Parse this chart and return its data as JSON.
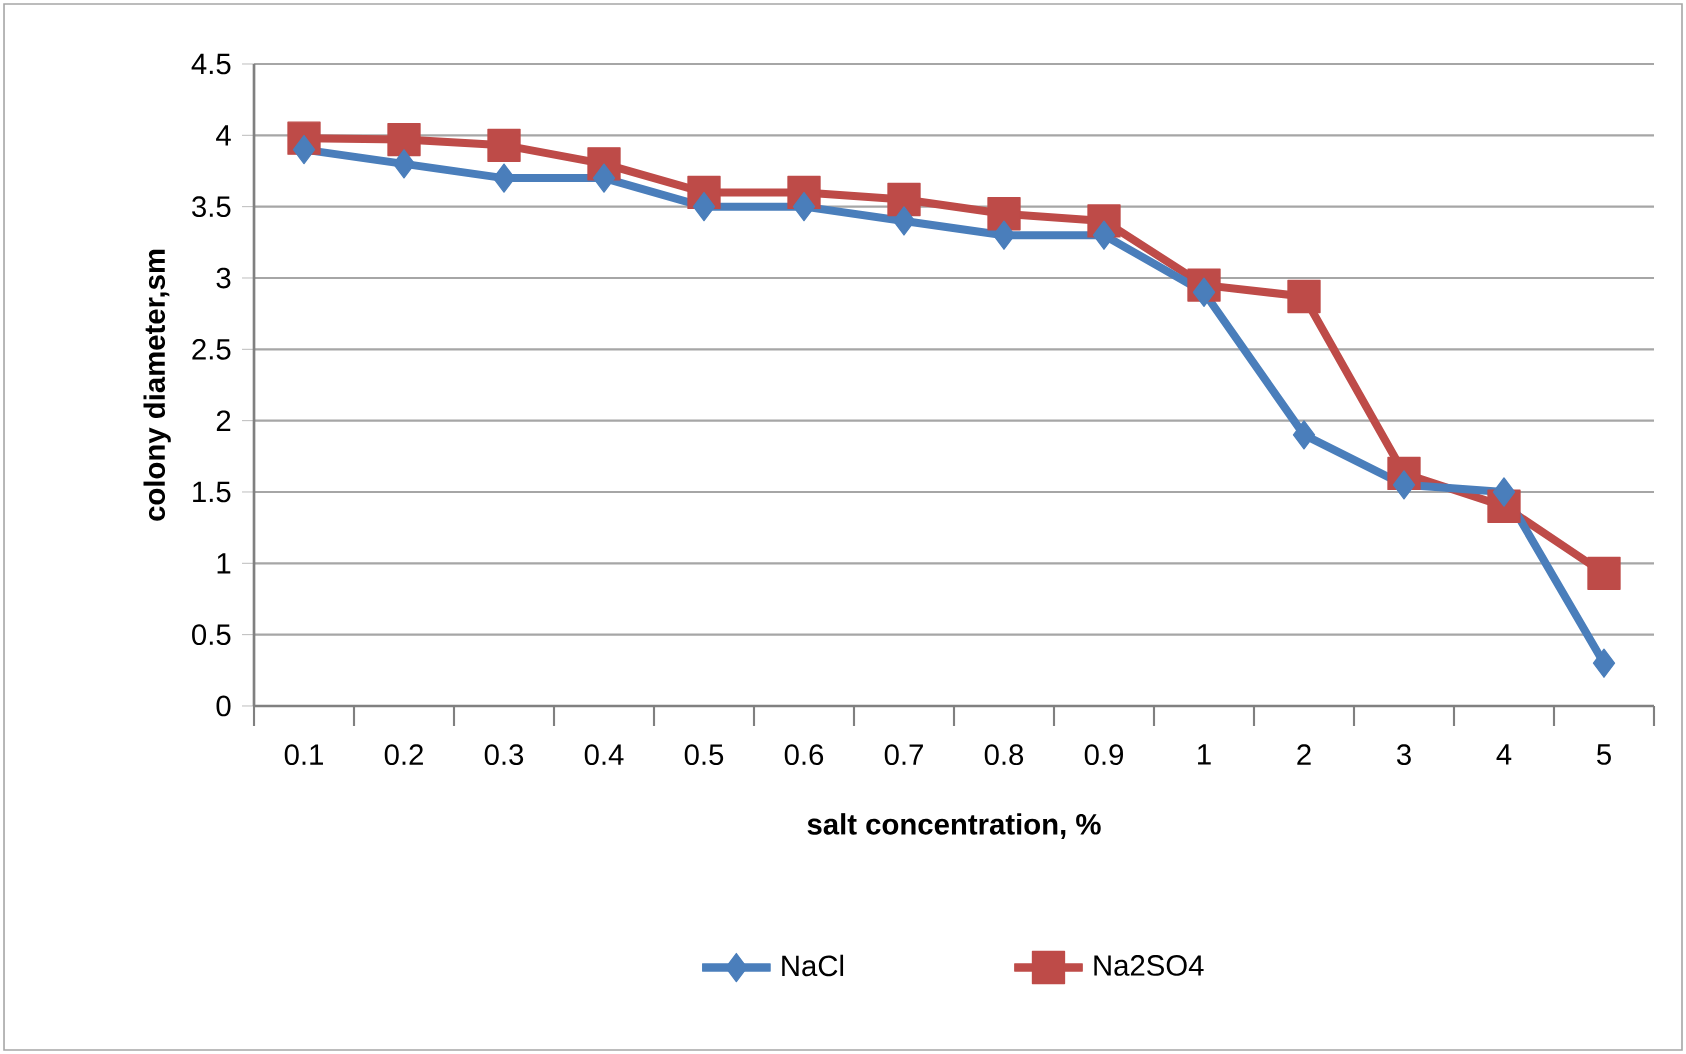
{
  "chart_data": {
    "type": "line",
    "xlabel": "salt concentration, %",
    "ylabel": "colony diameter,sm",
    "categories": [
      "0.1",
      "0.2",
      "0.3",
      "0.4",
      "0.5",
      "0.6",
      "0.7",
      "0.8",
      "0.9",
      "1",
      "2",
      "3",
      "4",
      "5"
    ],
    "series": [
      {
        "name": "NaCl",
        "color": "#4a7ebb",
        "marker": "diamond",
        "values": [
          3.9,
          3.8,
          3.7,
          3.7,
          3.5,
          3.5,
          3.4,
          3.3,
          3.3,
          2.9,
          1.9,
          1.55,
          1.5,
          0.3
        ]
      },
      {
        "name": "Na2SO4",
        "color": "#be4b48",
        "marker": "square",
        "values": [
          3.98,
          3.97,
          3.93,
          3.8,
          3.6,
          3.6,
          3.55,
          3.45,
          3.4,
          2.95,
          2.87,
          1.63,
          1.4,
          0.93
        ]
      }
    ],
    "ylim": [
      0,
      4.5
    ],
    "yticks": [
      0,
      0.5,
      1,
      1.5,
      2,
      2.5,
      3,
      3.5,
      4,
      4.5
    ],
    "grid": "y",
    "legend": "bottom",
    "line_style": "solid"
  }
}
